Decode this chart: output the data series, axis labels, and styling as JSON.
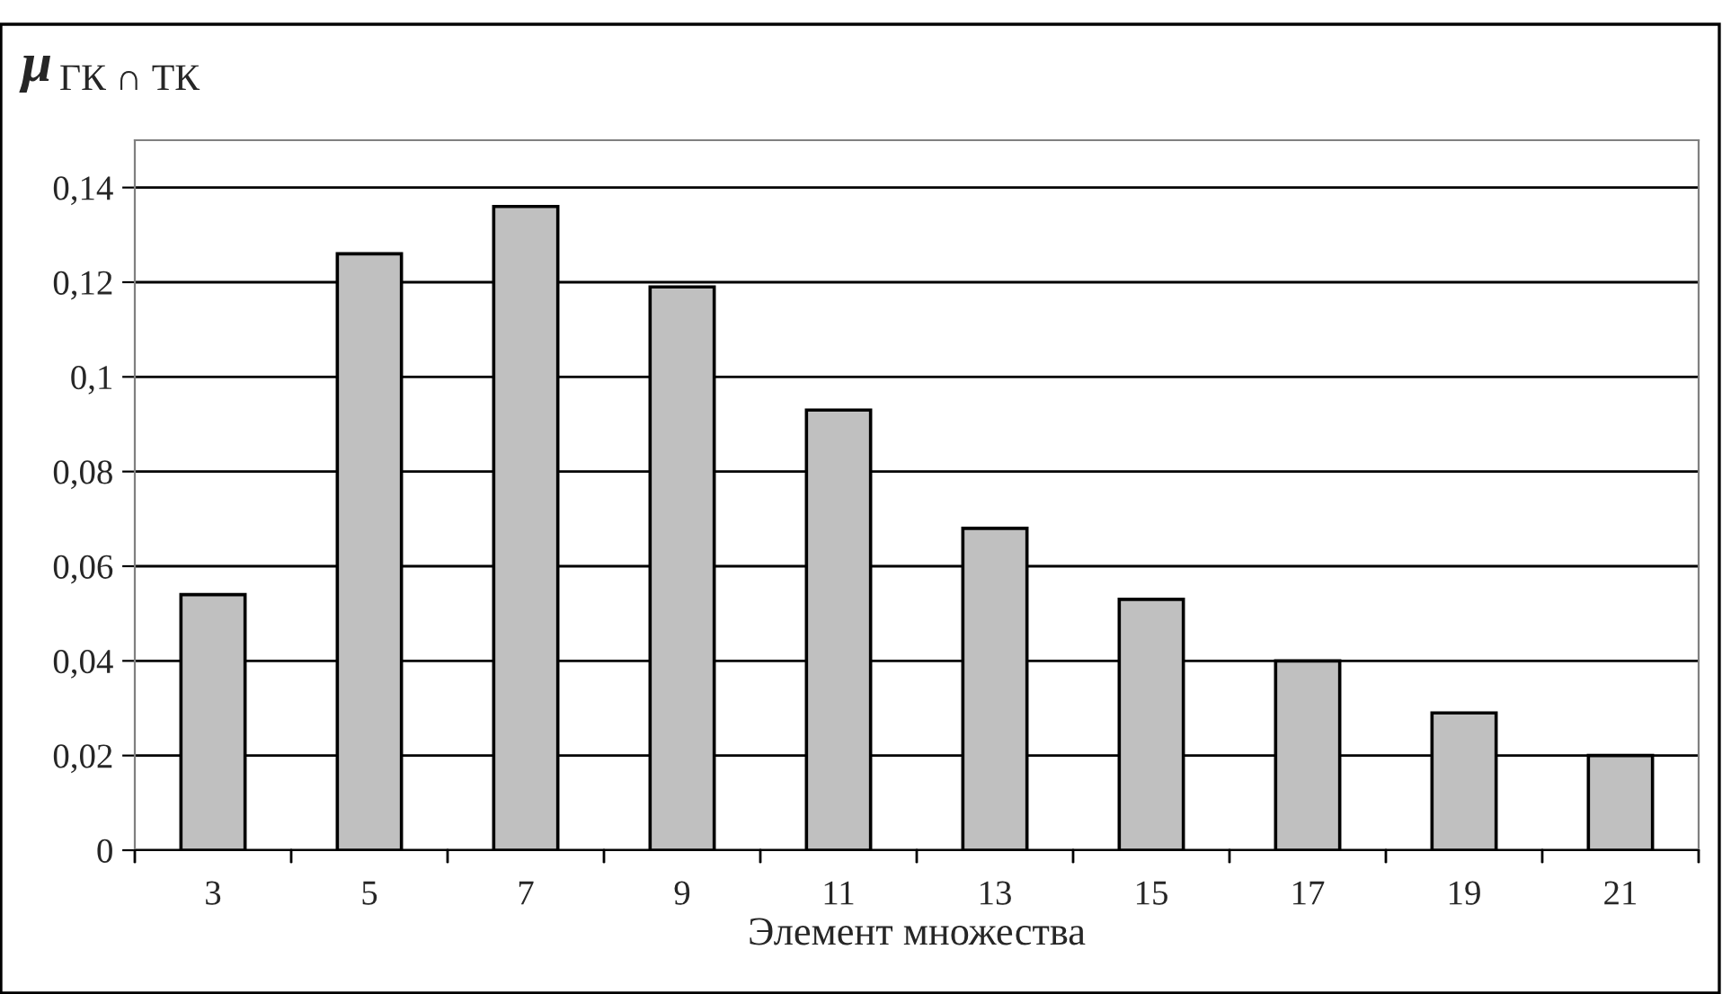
{
  "chart_data": {
    "type": "bar",
    "ylabel": "μ$_{ГК ∩ ТК}$",
    "xlabel": "Элемент множества",
    "categories": [
      "3",
      "5",
      "7",
      "9",
      "11",
      "13",
      "15",
      "17",
      "19",
      "21"
    ],
    "values": [
      0.054,
      0.126,
      0.136,
      0.119,
      0.093,
      0.068,
      0.053,
      0.04,
      0.029,
      0.02
    ],
    "color": "#c0c0c0",
    "ylim": [
      0,
      0.15
    ],
    "yticks": [
      {
        "value": 0,
        "label": "0"
      },
      {
        "value": 0.02,
        "label": "0,02"
      },
      {
        "value": 0.04,
        "label": "0,04"
      },
      {
        "value": 0.06,
        "label": "0,06"
      },
      {
        "value": 0.08,
        "label": "0,08"
      },
      {
        "value": 0.1,
        "label": "0,1"
      },
      {
        "value": 0.12,
        "label": "0,12"
      },
      {
        "value": 0.14,
        "label": "0,14"
      }
    ],
    "grid": "y",
    "legend": false
  }
}
